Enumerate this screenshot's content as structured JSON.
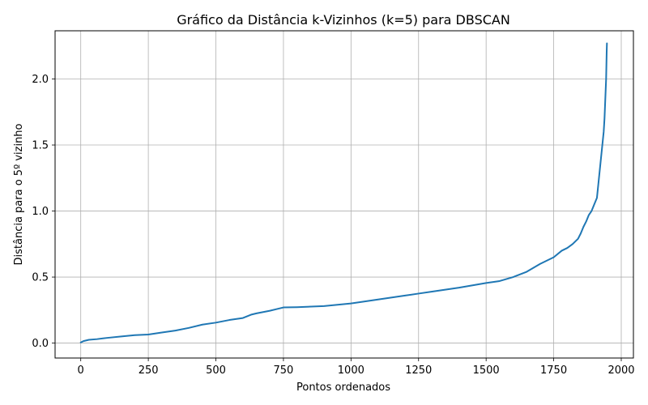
{
  "chart_data": {
    "type": "line",
    "title": "Gráfico da Distância k-Vizinhos (k=5) para DBSCAN",
    "xlabel": "Pontos ordenados",
    "ylabel": "Distância para o 5º vizinho",
    "xlim": [
      -95,
      2045
    ],
    "ylim": [
      -0.113,
      2.365
    ],
    "xticks": [
      0,
      250,
      500,
      750,
      1000,
      1250,
      1500,
      1750,
      2000
    ],
    "xtick_labels": [
      "0",
      "250",
      "500",
      "750",
      "1000",
      "1250",
      "1500",
      "1750",
      "2000"
    ],
    "yticks": [
      0.0,
      0.5,
      1.0,
      1.5,
      2.0
    ],
    "ytick_labels": [
      "0.0",
      "0.5",
      "1.0",
      "1.5",
      "2.0"
    ],
    "grid": true,
    "line_color": "#1f77b4",
    "series": [
      {
        "x": [
          0,
          10,
          30,
          60,
          100,
          150,
          200,
          250,
          300,
          350,
          400,
          450,
          500,
          550,
          600,
          630,
          650,
          700,
          730,
          750,
          800,
          900,
          1000,
          1100,
          1200,
          1250,
          1300,
          1400,
          1500,
          1550,
          1600,
          1650,
          1700,
          1750,
          1780,
          1800,
          1820,
          1840,
          1850,
          1860,
          1870,
          1880,
          1890,
          1900,
          1910,
          1915,
          1920,
          1925,
          1930,
          1935,
          1938,
          1940,
          1942,
          1944,
          1945,
          1946,
          1947
        ],
        "values": [
          0.005,
          0.015,
          0.025,
          0.03,
          0.04,
          0.05,
          0.06,
          0.065,
          0.08,
          0.095,
          0.115,
          0.14,
          0.155,
          0.175,
          0.19,
          0.215,
          0.225,
          0.245,
          0.26,
          0.27,
          0.272,
          0.28,
          0.3,
          0.33,
          0.36,
          0.375,
          0.39,
          0.42,
          0.455,
          0.47,
          0.5,
          0.54,
          0.6,
          0.65,
          0.7,
          0.72,
          0.75,
          0.79,
          0.83,
          0.88,
          0.92,
          0.97,
          1.0,
          1.05,
          1.1,
          1.2,
          1.3,
          1.4,
          1.5,
          1.6,
          1.7,
          1.8,
          1.9,
          2.0,
          2.1,
          2.2,
          2.27
        ]
      }
    ]
  }
}
